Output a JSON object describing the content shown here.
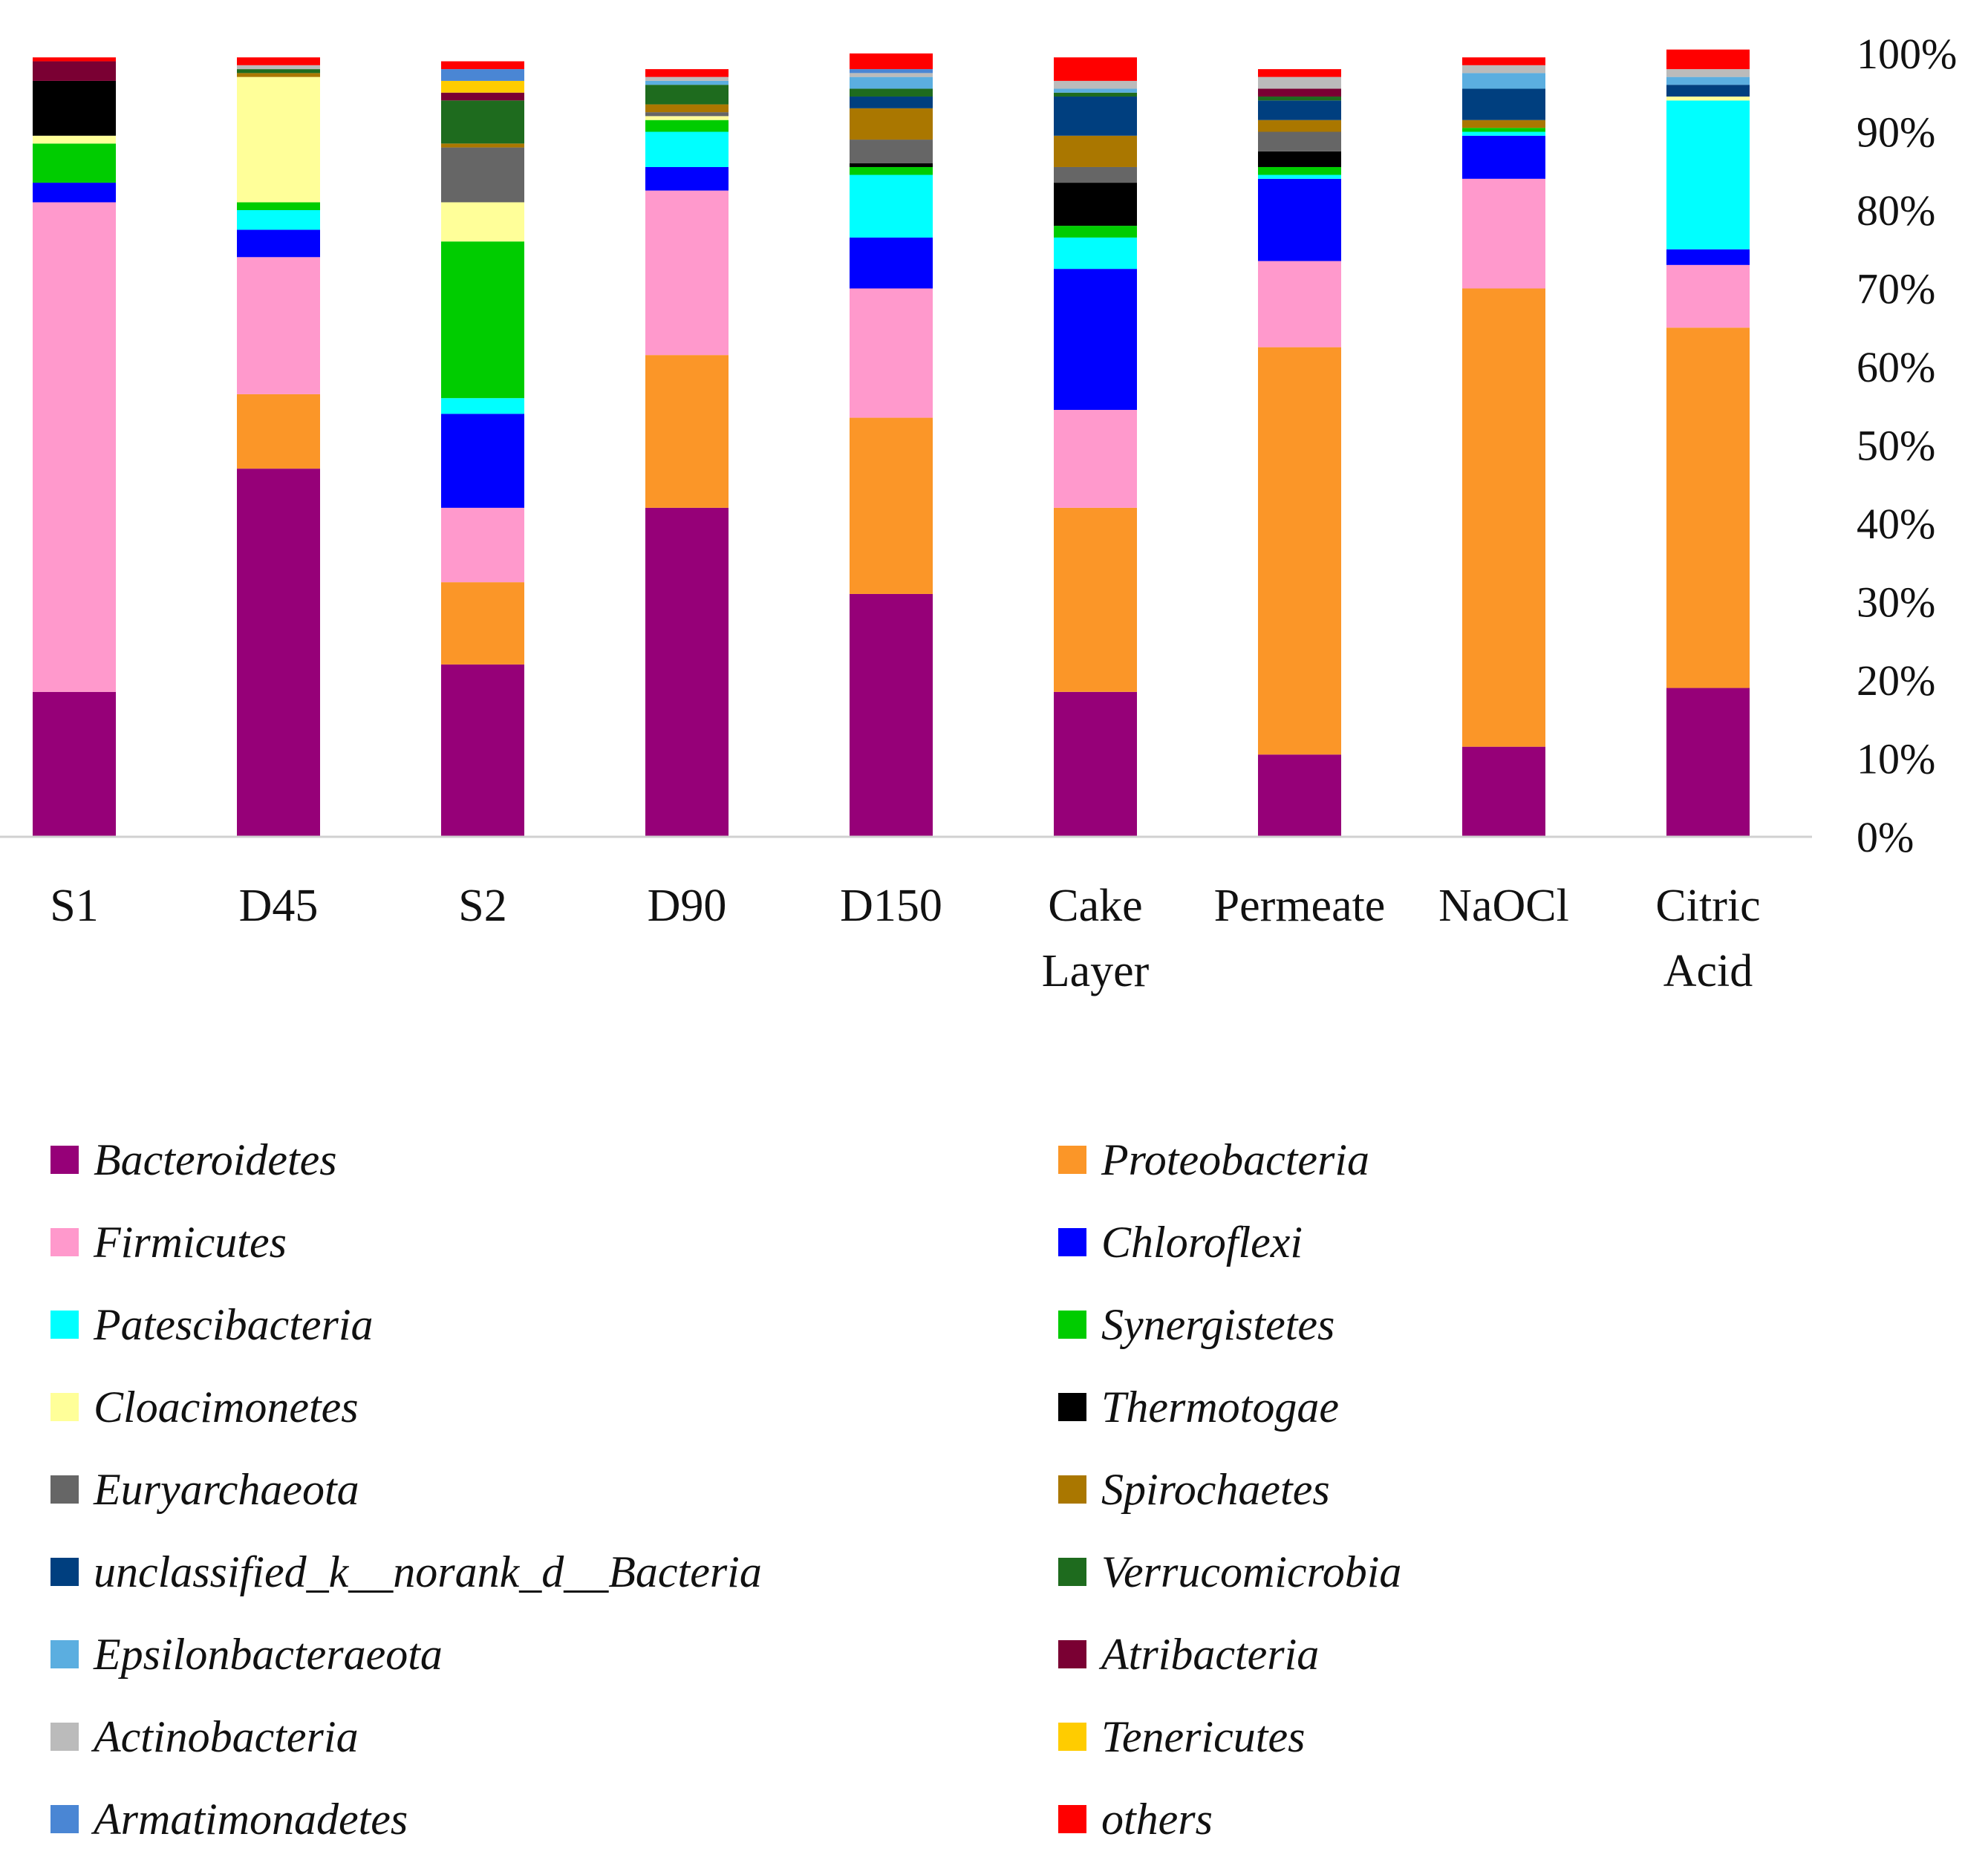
{
  "chart_data": {
    "type": "bar",
    "stacked": true,
    "normalized": true,
    "categories": [
      "S1",
      "D45",
      "S2",
      "D90",
      "D150",
      "Cake Layer",
      "Permeate",
      "NaOCl",
      "Citric Acid"
    ],
    "y_ticks": [
      "0%",
      "10%",
      "20%",
      "30%",
      "40%",
      "50%",
      "60%",
      "70%",
      "80%",
      "90%",
      "100%"
    ],
    "ylim": [
      0,
      100
    ],
    "y_axis_position": "right",
    "grid": false,
    "legend_position": "bottom",
    "series": [
      {
        "name": "Bacteroidetes",
        "color": "#960078",
        "values": [
          18.5,
          47,
          22,
          42,
          31,
          18.5,
          10.5,
          11.5,
          19
        ]
      },
      {
        "name": "Proteobacteria",
        "color": "#FB9628",
        "values": [
          0,
          9.5,
          10.5,
          19.5,
          22.5,
          23.5,
          52,
          58.5,
          46
        ]
      },
      {
        "name": "Firmicutes",
        "color": "#FF99CC",
        "values": [
          62.5,
          17.5,
          9.5,
          21,
          16.5,
          12.5,
          11,
          14,
          8
        ]
      },
      {
        "name": "Chloroflexi",
        "color": "#0000FF",
        "values": [
          2.5,
          3.5,
          12,
          3,
          6.5,
          18,
          10.5,
          5.5,
          2
        ]
      },
      {
        "name": "Patescibacteria",
        "color": "#00FFFF",
        "values": [
          0,
          2.5,
          2,
          4.5,
          8,
          4,
          0.5,
          0.5,
          19
        ]
      },
      {
        "name": "Synergistetes",
        "color": "#00CC00",
        "values": [
          5,
          1,
          20,
          1.5,
          1,
          1.5,
          1,
          0.5,
          0
        ]
      },
      {
        "name": "Cloacimonetes",
        "color": "#FFFF99",
        "values": [
          1,
          16,
          5,
          0.5,
          0,
          0,
          0,
          0,
          0.5
        ]
      },
      {
        "name": "Thermotogae",
        "color": "#000000",
        "values": [
          7,
          0,
          0,
          0,
          0.5,
          5.5,
          2,
          0,
          0
        ]
      },
      {
        "name": "Euryarchaeota",
        "color": "#666666",
        "values": [
          0,
          0,
          7,
          0.5,
          3,
          2,
          2.5,
          0,
          0
        ]
      },
      {
        "name": "Spirochaetes",
        "color": "#AA7700",
        "values": [
          0,
          0.5,
          0.5,
          1,
          4,
          4,
          1.5,
          1,
          0
        ]
      },
      {
        "name": "unclassified_k__norank_d__Bacteria",
        "color": "#003F7F",
        "values": [
          0,
          0,
          0,
          0,
          1.5,
          5,
          2.5,
          4,
          1.5
        ]
      },
      {
        "name": "Verrucomicrobia",
        "color": "#1E6B1E",
        "values": [
          0,
          0.5,
          5.5,
          2.5,
          1,
          0.5,
          0.5,
          0,
          0
        ]
      },
      {
        "name": "Epsilonbacteraeota",
        "color": "#5BAEE0",
        "values": [
          0,
          0,
          0,
          0.5,
          1.5,
          0.5,
          0,
          2,
          1
        ]
      },
      {
        "name": "Atribacteria",
        "color": "#7A0033",
        "values": [
          2.5,
          0,
          1,
          0,
          0,
          0,
          1,
          0,
          0
        ]
      },
      {
        "name": "Actinobacteria",
        "color": "#BBBBBB",
        "values": [
          0,
          0.5,
          0,
          0.5,
          0.5,
          1,
          1.5,
          1,
          1
        ]
      },
      {
        "name": "Tenericutes",
        "color": "#FFCC00",
        "values": [
          0,
          0,
          1.5,
          0,
          0,
          0,
          0,
          0,
          0
        ]
      },
      {
        "name": "Armatimonadetes",
        "color": "#4A86D4",
        "values": [
          0,
          0,
          1.5,
          0,
          0.5,
          0,
          0,
          0,
          0
        ]
      },
      {
        "name": "others",
        "color": "#FF0000",
        "values": [
          0.5,
          1,
          1,
          1,
          2,
          3,
          1,
          1,
          2.5
        ]
      }
    ]
  }
}
